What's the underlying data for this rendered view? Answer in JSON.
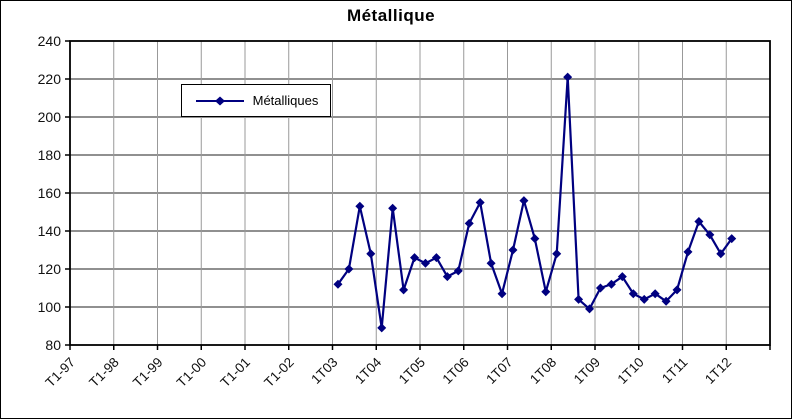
{
  "chart": {
    "title": "Métallique",
    "legend_label": "Métalliques"
  },
  "chart_data": {
    "type": "line",
    "title": "Métallique",
    "xlabel": "",
    "ylabel": "",
    "grid": "both",
    "legend_position": "inside-upper-left",
    "y_axis": {
      "min": 80,
      "max": 240,
      "step": 20,
      "tick_labels": [
        "240",
        "220",
        "200",
        "180",
        "160",
        "140",
        "120",
        "100",
        "80"
      ]
    },
    "x_axis": {
      "tick_labels": [
        "T1-97",
        "T1-98",
        "T1-99",
        "T1-00",
        "T1-01",
        "T1-02",
        "1T03",
        "1T04",
        "1T05",
        "1T06",
        "1T07",
        "1T08",
        "1T09",
        "1T10",
        "1T11",
        "1T12"
      ],
      "categories_per_tick": 4,
      "total_categories": 64,
      "frequency": "quarterly"
    },
    "series": [
      {
        "name": "Métalliques",
        "color": "#000080",
        "marker": "diamond",
        "first_point_label": "1T03",
        "start_category_index": 24,
        "values": [
          112,
          120,
          153,
          128,
          89,
          152,
          109,
          126,
          123,
          126,
          116,
          119,
          144,
          155,
          123,
          107,
          130,
          156,
          136,
          108,
          128,
          221,
          104,
          99,
          110,
          112,
          116,
          107,
          104,
          107,
          103,
          109,
          129,
          145,
          138,
          128,
          136
        ]
      }
    ]
  },
  "colors": {
    "series_line": "#000080",
    "plot_background": "#ffffff",
    "plot_border": "#000000",
    "h_gridline": "#4d4d4d",
    "v_gridline": "#999999",
    "axis_text": "#111111"
  }
}
